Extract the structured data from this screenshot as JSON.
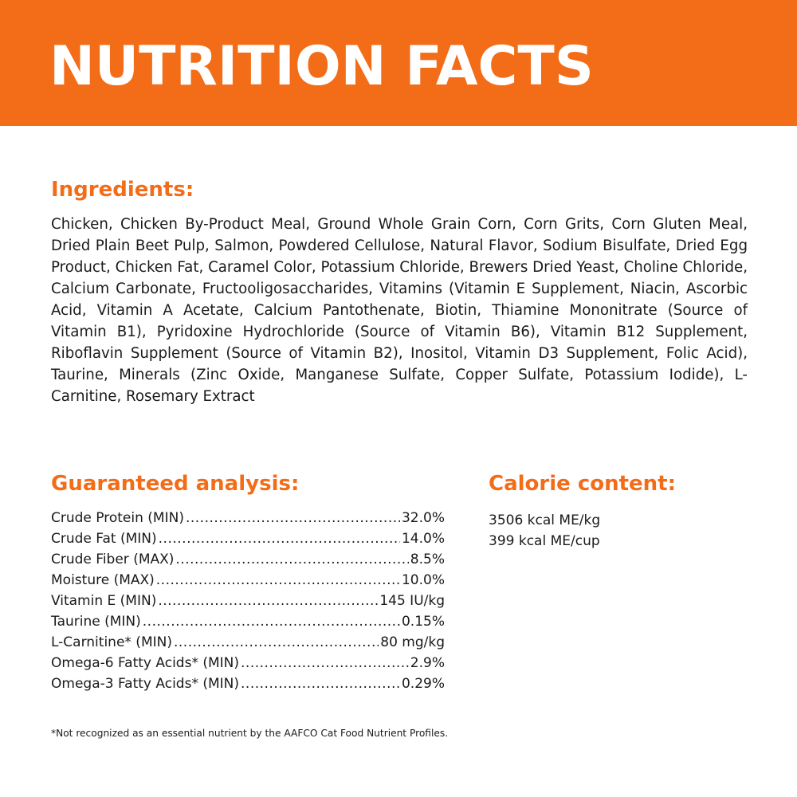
{
  "banner": {
    "title": "NUTRITION FACTS",
    "color": "#f36c17"
  },
  "ingredients": {
    "heading": "Ingredients:",
    "text": "Chicken, Chicken By-Product Meal, Ground Whole Grain Corn, Corn Grits, Corn Gluten Meal, Dried Plain Beet Pulp, Salmon, Powdered Cellulose, Natural Flavor, Sodium Bisulfate, Dried Egg Product, Chicken Fat, Caramel Color, Potassium Chloride, Brewers Dried Yeast, Choline Chloride, Calcium Carbonate, Fructooligosaccharides, Vitamins (Vitamin E Supplement, Niacin, Ascorbic Acid, Vitamin A Acetate, Calcium Pantothenate, Biotin, Thiamine Mononitrate (Source of Vitamin B1), Pyridoxine Hydrochloride (Source of Vitamin B6), Vitamin B12 Supplement, Riboflavin Supplement (Source of Vitamin B2), Inositol, Vitamin D3 Supplement, Folic Acid), Taurine, Minerals (Zinc Oxide, Manganese Sulfate, Copper Sulfate, Potassium Iodide), L-Carnitine, Rosemary Extract"
  },
  "analysis": {
    "heading": "Guaranteed analysis:",
    "rows": [
      {
        "name": "Crude Protein (MIN)",
        "value": "32.0%"
      },
      {
        "name": "Crude Fat (MIN)",
        "value": "14.0%"
      },
      {
        "name": "Crude Fiber (MAX)",
        "value": "8.5%"
      },
      {
        "name": "Moisture (MAX)",
        "value": "10.0%"
      },
      {
        "name": "Vitamin E (MIN)",
        "value": "145 IU/kg"
      },
      {
        "name": "Taurine (MIN)",
        "value": "0.15%"
      },
      {
        "name": "L-Carnitine* (MIN)",
        "value": "80 mg/kg"
      },
      {
        "name": "Omega-6 Fatty Acids* (MIN)",
        "value": "2.9%"
      },
      {
        "name": "Omega-3 Fatty Acids* (MIN)",
        "value": "0.29%"
      }
    ]
  },
  "calorie": {
    "heading": "Calorie content:",
    "lines": [
      "3506 kcal ME/kg",
      "399 kcal ME/cup"
    ]
  },
  "footnote": "*Not recognized as an essential nutrient by the AAFCO Cat Food Nutrient Profiles."
}
